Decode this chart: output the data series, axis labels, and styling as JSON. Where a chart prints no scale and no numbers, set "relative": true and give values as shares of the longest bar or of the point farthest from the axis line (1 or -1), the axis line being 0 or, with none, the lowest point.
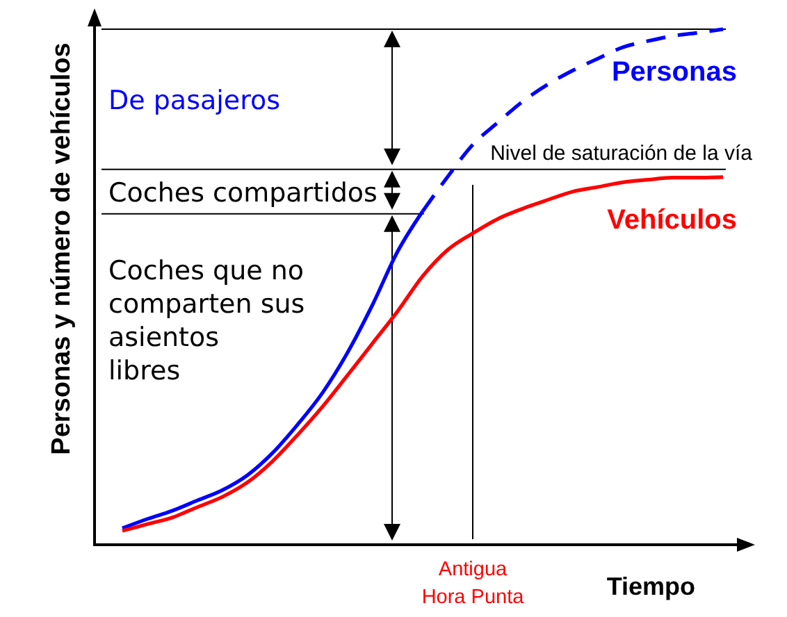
{
  "chart_data": {
    "type": "line",
    "relative": true,
    "xlabel": "Tiempo",
    "ylabel": "Personas y número de vehículos",
    "categories": [
      null,
      null,
      null,
      null,
      null,
      null,
      null,
      null,
      null,
      null,
      null,
      null,
      null,
      null,
      null,
      null,
      null,
      null,
      null,
      null,
      null,
      null,
      null,
      null,
      null
    ],
    "series": [
      {
        "color": "#0000ff",
        "values": [
          0.032,
          0.05,
          0.066,
          0.086,
          0.106,
          0.135,
          0.178,
          0.233,
          0.295,
          0.373,
          0.466,
          0.569,
          0.647,
          null,
          null,
          null,
          null,
          null,
          null,
          null,
          null,
          null,
          null,
          null,
          null
        ]
      },
      {
        "name": "Personas",
        "color": "#0000ff",
        "line_style": "dashed",
        "values": [
          null,
          null,
          null,
          null,
          null,
          null,
          null,
          null,
          null,
          null,
          null,
          null,
          0.647,
          0.714,
          0.776,
          0.819,
          0.86,
          0.893,
          0.92,
          0.943,
          0.965,
          0.977,
          0.987,
          0.993,
          1
        ]
      },
      {
        "name": "Vehículos",
        "color": "#ff0000",
        "values": [
          0.027,
          0.04,
          0.053,
          0.073,
          0.093,
          0.121,
          0.162,
          0.213,
          0.268,
          0.329,
          0.391,
          0.453,
          0.521,
          0.572,
          0.604,
          0.632,
          0.652,
          0.669,
          0.685,
          0.694,
          0.703,
          0.708,
          0.712,
          0.712,
          0.713
        ]
      }
    ],
    "ref_lines": [
      {
        "axis": "y",
        "value": 1
      },
      {
        "axis": "y",
        "value": 0.728,
        "label": "Nivel de saturación de la vía"
      },
      {
        "axis": "y",
        "value": 0.642
      }
    ],
    "annotations": [
      "De pasajeros",
      "Coches compartidos",
      "Coches que no\ncomparten sus\nasientos\nlibres",
      "Antigua\nHora Punta"
    ]
  }
}
